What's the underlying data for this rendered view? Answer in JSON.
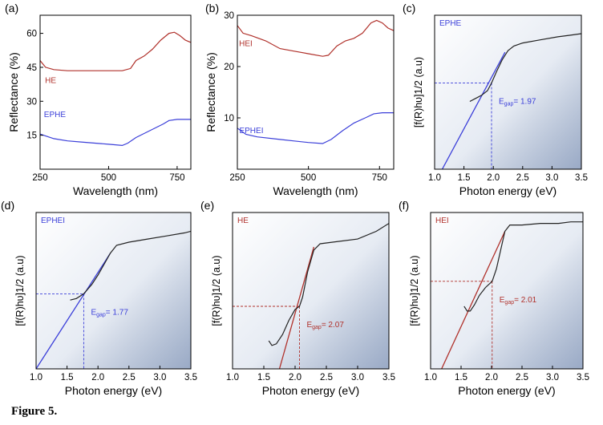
{
  "caption": "Figure 5.",
  "colors": {
    "blue": "#3b3fd9",
    "red": "#b0312b",
    "black": "#222222",
    "grad_dark": "#8ea0bf"
  },
  "chart_data": [
    {
      "type": "line",
      "panel": "(a)",
      "xlabel": "Wavelength (nm)",
      "ylabel": "Reflectance (%)",
      "xlim": [
        250,
        800
      ],
      "ylim": [
        0,
        68
      ],
      "xticks": [
        250,
        500,
        750
      ],
      "yticks": [
        15,
        30,
        45,
        60
      ],
      "series": [
        {
          "name": "HE",
          "color": "red",
          "x": [
            250,
            270,
            300,
            350,
            400,
            450,
            500,
            550,
            580,
            600,
            630,
            660,
            690,
            720,
            740,
            760,
            780,
            800
          ],
          "y": [
            48,
            45,
            44,
            43.5,
            43.5,
            43.5,
            43.5,
            43.5,
            44.5,
            48,
            50,
            53,
            57,
            60,
            60.5,
            59,
            57,
            56
          ]
        },
        {
          "name": "EPHE",
          "color": "blue",
          "x": [
            250,
            300,
            350,
            400,
            450,
            500,
            550,
            570,
            600,
            650,
            700,
            720,
            750,
            780,
            800
          ],
          "y": [
            15.5,
            13.5,
            12.5,
            12,
            11.5,
            11,
            10.5,
            11.5,
            14,
            17,
            20,
            21.5,
            22,
            22,
            22
          ]
        }
      ]
    },
    {
      "type": "line",
      "panel": "(b)",
      "xlabel": "Wavelength (nm)",
      "ylabel": "Reflectance (%)",
      "xlim": [
        250,
        800
      ],
      "ylim": [
        0,
        30
      ],
      "xticks": [
        250,
        500,
        750
      ],
      "yticks": [
        10,
        20,
        30
      ],
      "series": [
        {
          "name": "HEI",
          "color": "red",
          "x": [
            250,
            270,
            300,
            350,
            400,
            450,
            500,
            550,
            570,
            600,
            630,
            660,
            690,
            720,
            740,
            760,
            780,
            800
          ],
          "y": [
            28,
            26.5,
            26,
            25,
            23.5,
            23,
            22.5,
            22,
            22.2,
            24,
            25,
            25.5,
            26.5,
            28.5,
            29,
            28.5,
            27.5,
            27
          ]
        },
        {
          "name": "EPHEI",
          "color": "blue",
          "x": [
            250,
            280,
            320,
            400,
            450,
            500,
            550,
            580,
            620,
            660,
            700,
            730,
            760,
            800
          ],
          "y": [
            8,
            6.8,
            6.3,
            5.8,
            5.5,
            5.2,
            5,
            5.8,
            7.5,
            9,
            10,
            10.8,
            11,
            11
          ]
        }
      ]
    },
    {
      "type": "line",
      "panel": "(c)",
      "label": "EPHE",
      "label_color": "blue",
      "xlabel": "Photon energy (eV)",
      "ylabel": "[f(R)hυ]1/2 (a.u)",
      "xlim": [
        1.0,
        3.5
      ],
      "ylim": [
        0,
        1
      ],
      "xticks": [
        1.0,
        1.5,
        2.0,
        2.5,
        3.0,
        3.5
      ],
      "egap": {
        "sub": "gap",
        "text": "= 1.97",
        "value": 1.97,
        "y": 0.56,
        "color": "blue"
      },
      "fit": {
        "color": "blue",
        "x": [
          1.13,
          2.2
        ],
        "y": [
          0,
          0.76
        ]
      },
      "series": [
        {
          "name": "EPHE",
          "color": "black",
          "x": [
            1.6,
            1.7,
            1.8,
            1.9,
            1.97,
            2.05,
            2.15,
            2.25,
            2.35,
            2.5,
            2.8,
            3.1,
            3.3,
            3.5
          ],
          "y": [
            0.44,
            0.46,
            0.48,
            0.51,
            0.56,
            0.63,
            0.71,
            0.77,
            0.8,
            0.82,
            0.84,
            0.86,
            0.87,
            0.88
          ]
        }
      ]
    },
    {
      "type": "line",
      "panel": "(d)",
      "label": "EPHEI",
      "label_color": "blue",
      "xlabel": "Photon energy (eV)",
      "ylabel": "[f(R)hυ]1/2 (a.u)",
      "xlim": [
        1.0,
        3.5
      ],
      "ylim": [
        0,
        1
      ],
      "xticks": [
        1.0,
        1.5,
        2.0,
        2.5,
        3.0,
        3.5
      ],
      "egap": {
        "sub": "gap",
        "text": "= 1.77",
        "value": 1.77,
        "y": 0.48,
        "color": "blue"
      },
      "fit": {
        "color": "blue",
        "x": [
          1.0,
          2.2
        ],
        "y": [
          0,
          0.74
        ]
      },
      "series": [
        {
          "name": "EPHEI",
          "color": "black",
          "x": [
            1.55,
            1.65,
            1.77,
            1.9,
            2.0,
            2.1,
            2.2,
            2.3,
            2.5,
            2.8,
            3.1,
            3.4,
            3.5
          ],
          "y": [
            0.44,
            0.45,
            0.48,
            0.54,
            0.6,
            0.67,
            0.74,
            0.79,
            0.81,
            0.83,
            0.85,
            0.87,
            0.88
          ]
        }
      ]
    },
    {
      "type": "line",
      "panel": "(e)",
      "label": "HE",
      "label_color": "red",
      "xlabel": "Photon energy (eV)",
      "ylabel": "[f(R)hυ]1/2 (a.u)",
      "xlim": [
        1.0,
        3.5
      ],
      "ylim": [
        0,
        1
      ],
      "xticks": [
        1.0,
        1.5,
        2.0,
        2.5,
        3.0,
        3.5
      ],
      "egap": {
        "sub": "gap",
        "text": "= 2.07",
        "value": 2.07,
        "y": 0.4,
        "color": "red"
      },
      "fit": {
        "color": "red",
        "x": [
          1.75,
          2.3
        ],
        "y": [
          0,
          0.78
        ]
      },
      "series": [
        {
          "name": "HE",
          "color": "black",
          "x": [
            1.58,
            1.63,
            1.7,
            1.8,
            1.9,
            2.0,
            2.07,
            2.12,
            2.2,
            2.3,
            2.4,
            2.6,
            3.0,
            3.3,
            3.5
          ],
          "y": [
            0.18,
            0.15,
            0.16,
            0.22,
            0.31,
            0.38,
            0.4,
            0.46,
            0.62,
            0.76,
            0.8,
            0.81,
            0.83,
            0.88,
            0.93
          ]
        }
      ]
    },
    {
      "type": "line",
      "panel": "(f)",
      "label": "HEI",
      "label_color": "red",
      "xlabel": "Photon energy (eV)",
      "ylabel": "[f(R)hυ]1/2 (a.u)",
      "xlim": [
        1.0,
        3.5
      ],
      "ylim": [
        0,
        1
      ],
      "xticks": [
        1.0,
        1.5,
        2.0,
        2.5,
        3.0,
        3.5
      ],
      "egap": {
        "sub": "gap",
        "text": "= 2.01",
        "value": 2.01,
        "y": 0.56,
        "color": "red"
      },
      "fit": {
        "color": "red",
        "x": [
          1.18,
          2.22
        ],
        "y": [
          0,
          0.88
        ]
      },
      "series": [
        {
          "name": "HEI",
          "color": "black",
          "x": [
            1.55,
            1.6,
            1.65,
            1.72,
            1.8,
            1.9,
            2.01,
            2.08,
            2.15,
            2.22,
            2.3,
            2.5,
            2.8,
            3.1,
            3.3,
            3.5
          ],
          "y": [
            0.4,
            0.37,
            0.37,
            0.41,
            0.47,
            0.52,
            0.56,
            0.64,
            0.76,
            0.88,
            0.92,
            0.92,
            0.93,
            0.93,
            0.94,
            0.94
          ]
        }
      ]
    }
  ]
}
